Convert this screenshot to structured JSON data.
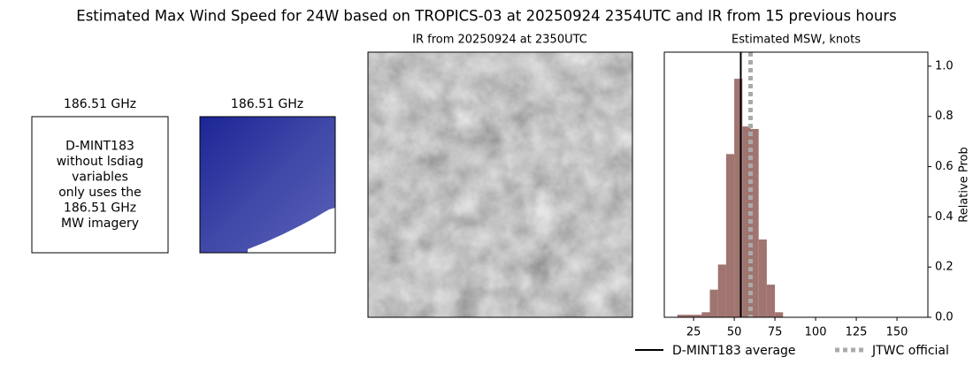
{
  "title": "Estimated Max Wind Speed for 24W based on TROPICS-03 at 20250924 2354UTC and IR from 15 previous hours",
  "panels": [
    {
      "title": "186.51 GHz",
      "text": [
        "D-MINT183",
        "without lsdiag",
        "variables",
        "only uses the",
        "186.51 GHz",
        "MW imagery"
      ]
    },
    {
      "title": "186.51 GHz"
    },
    {
      "title": "IR from 20250924 at 2350UTC"
    }
  ],
  "chart_data": {
    "type": "histogram",
    "title": "Estimated MSW, knots",
    "ylabel": "Relative Prob",
    "bins": [
      15,
      20,
      25,
      30,
      35,
      40,
      45,
      50,
      55,
      60,
      65,
      70,
      75,
      80
    ],
    "values": [
      0.01,
      0.01,
      0.01,
      0.02,
      0.11,
      0.21,
      0.65,
      0.95,
      0.76,
      0.75,
      0.31,
      0.13,
      0.02
    ],
    "color": "#a07470",
    "xlim": [
      7,
      169
    ],
    "xticks": [
      25,
      50,
      75,
      100,
      125,
      150
    ],
    "ylim": [
      0,
      1.056
    ],
    "yticks": [
      {
        "value": 0,
        "label": "0.0"
      },
      0.2,
      0.4,
      0.6,
      0.8,
      {
        "value": 1,
        "label": "1.0"
      }
    ],
    "reference_lines": [
      {
        "name": "D-MINT183 average",
        "value": 54,
        "color": "#000000",
        "dashed": false
      },
      {
        "name": "JTWC official",
        "value": 60,
        "color": "#aaaaaa",
        "dashed": true
      }
    ]
  }
}
